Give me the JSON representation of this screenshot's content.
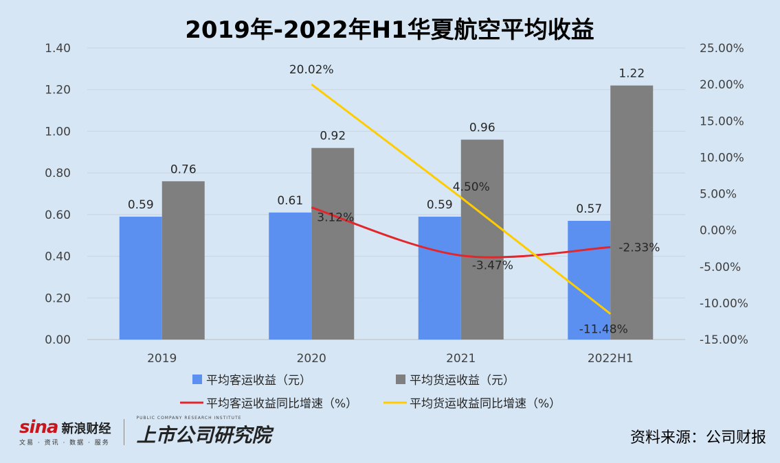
{
  "chart_data": {
    "type": "bar",
    "title": "2019年-2022年H1华夏航空平均收益",
    "categories": [
      "2019",
      "2020",
      "2021",
      "2022H1"
    ],
    "series": [
      {
        "name": "平均客运收益（元）",
        "kind": "bar",
        "axis": "left",
        "color": "#5b8ff0",
        "values": [
          0.59,
          0.61,
          0.59,
          0.57
        ],
        "labels": [
          "0.59",
          "0.61",
          "0.59",
          "0.57"
        ]
      },
      {
        "name": "平均货运收益（元）",
        "kind": "bar",
        "axis": "left",
        "color": "#7f7f7f",
        "values": [
          0.76,
          0.92,
          0.96,
          1.22
        ],
        "labels": [
          "0.76",
          "0.92",
          "0.96",
          "1.22"
        ]
      },
      {
        "name": "平均客运收益同比增速（%）",
        "kind": "line",
        "axis": "right",
        "color": "#e3262b",
        "values": [
          null,
          3.12,
          -3.47,
          -2.33
        ],
        "labels": [
          "",
          "3.12%",
          "-3.47%",
          "-2.33%"
        ]
      },
      {
        "name": "平均货运收益同比增速（%）",
        "kind": "line",
        "axis": "right",
        "color": "#ffcc00",
        "values": [
          null,
          20.02,
          4.5,
          -11.48
        ],
        "labels": [
          "",
          "20.02%",
          "4.50%",
          "-11.48%"
        ]
      }
    ],
    "y_left": {
      "range": [
        0,
        1.4
      ],
      "ticks": [
        "0.00",
        "0.20",
        "0.40",
        "0.60",
        "0.80",
        "1.00",
        "1.20",
        "1.40"
      ]
    },
    "y_right": {
      "range": [
        -15,
        25
      ],
      "ticks": [
        "-15.00%",
        "-10.00%",
        "-5.00%",
        "0.00%",
        "5.00%",
        "10.00%",
        "15.00%",
        "20.00%",
        "25.00%"
      ]
    },
    "grid": true,
    "legend": "bottom"
  },
  "branding": {
    "sina_logo": "sina",
    "sina_name": "新浪财经",
    "sina_sub": "文易 · 资讯 · 数据 · 服务",
    "institute": "上市公司研究院",
    "institute_en": "PUBLIC COMPANY RESEARCH INSTITUTE"
  },
  "source": "资料来源：公司财报"
}
